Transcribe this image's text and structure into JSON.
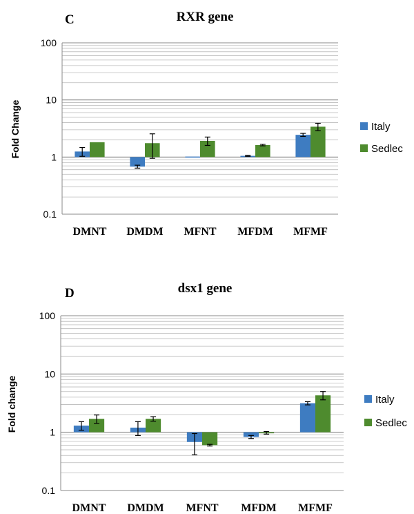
{
  "chart_data": [
    {
      "type": "bar",
      "panel": "C",
      "title": "RXR gene",
      "ylabel": "Fold Change",
      "xlabel": "",
      "yscale": "log",
      "ylim": [
        0.1,
        100
      ],
      "ytick_labels": [
        "0.1",
        "1",
        "10",
        "100"
      ],
      "categories": [
        "DMNT",
        "DMDM",
        "MFNT",
        "MFDM",
        "MFMF"
      ],
      "series": [
        {
          "name": "Italy",
          "color": "#3E7CC1",
          "values": [
            1.25,
            0.68,
            1.02,
            1.05,
            2.45
          ],
          "errors": [
            0.22,
            0.04,
            0.0,
            0.02,
            0.15
          ]
        },
        {
          "name": "Sedlec",
          "color": "#4E8B2E",
          "values": [
            1.82,
            1.75,
            1.92,
            1.62,
            3.4
          ],
          "errors": [
            0.0,
            0.8,
            0.32,
            0.05,
            0.5
          ]
        }
      ],
      "legend_position": "right",
      "grid": true
    },
    {
      "type": "bar",
      "panel": "D",
      "title": "dsx1 gene",
      "ylabel": "Fold change",
      "xlabel": "",
      "yscale": "log",
      "ylim": [
        0.1,
        100
      ],
      "ytick_labels": [
        "0.1",
        "1",
        "10",
        "100"
      ],
      "categories": [
        "DMNT",
        "DMDM",
        "MFNT",
        "MFDM",
        "MFMF"
      ],
      "series": [
        {
          "name": "Italy",
          "color": "#3E7CC1",
          "values": [
            1.3,
            1.2,
            0.68,
            0.83,
            3.15
          ],
          "errors": [
            0.22,
            0.32,
            0.27,
            0.05,
            0.2
          ]
        },
        {
          "name": "Sedlec",
          "color": "#4E8B2E",
          "values": [
            1.7,
            1.7,
            0.6,
            0.98,
            4.3
          ],
          "errors": [
            0.28,
            0.15,
            0.02,
            0.05,
            0.7
          ]
        }
      ],
      "legend_position": "right",
      "grid": true
    }
  ]
}
